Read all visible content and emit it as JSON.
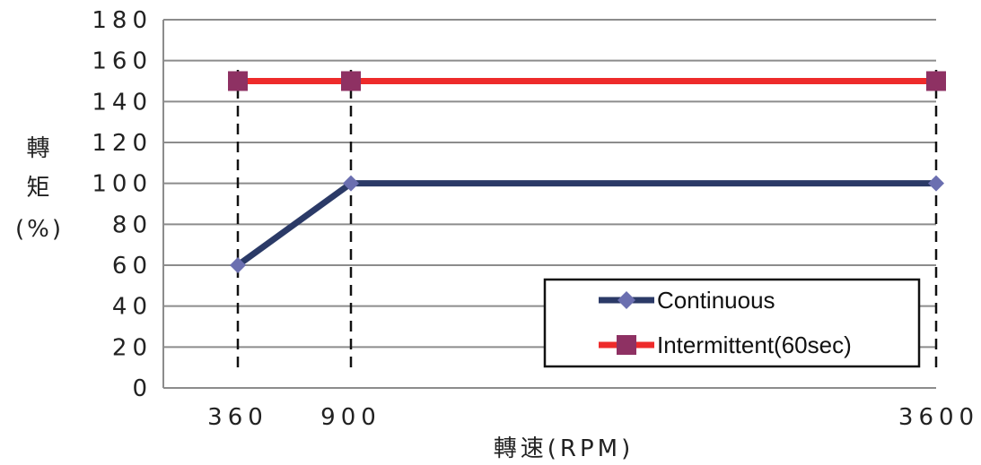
{
  "chart_data": {
    "type": "line",
    "title": "",
    "xlabel": "轉速(RPM)",
    "ylabel_lines": [
      "轉",
      "矩",
      "(%)"
    ],
    "x": [
      360,
      900,
      3600
    ],
    "x_tick_labels": [
      "360",
      "900",
      "3600"
    ],
    "y_ticks": [
      0,
      20,
      40,
      60,
      80,
      100,
      120,
      140,
      160,
      180
    ],
    "ylim": [
      0,
      180
    ],
    "grid": true,
    "legend_position": "bottom-right",
    "series": [
      {
        "name": "Continuous",
        "values": [
          60,
          100,
          100
        ],
        "color": "#2b3a67",
        "marker": "diamond",
        "marker_color": "#6b6fb0"
      },
      {
        "name": "Intermittent(60sec)",
        "values": [
          150,
          150,
          150
        ],
        "color": "#ee2b2b",
        "marker": "square",
        "marker_color": "#8e3163"
      }
    ]
  }
}
